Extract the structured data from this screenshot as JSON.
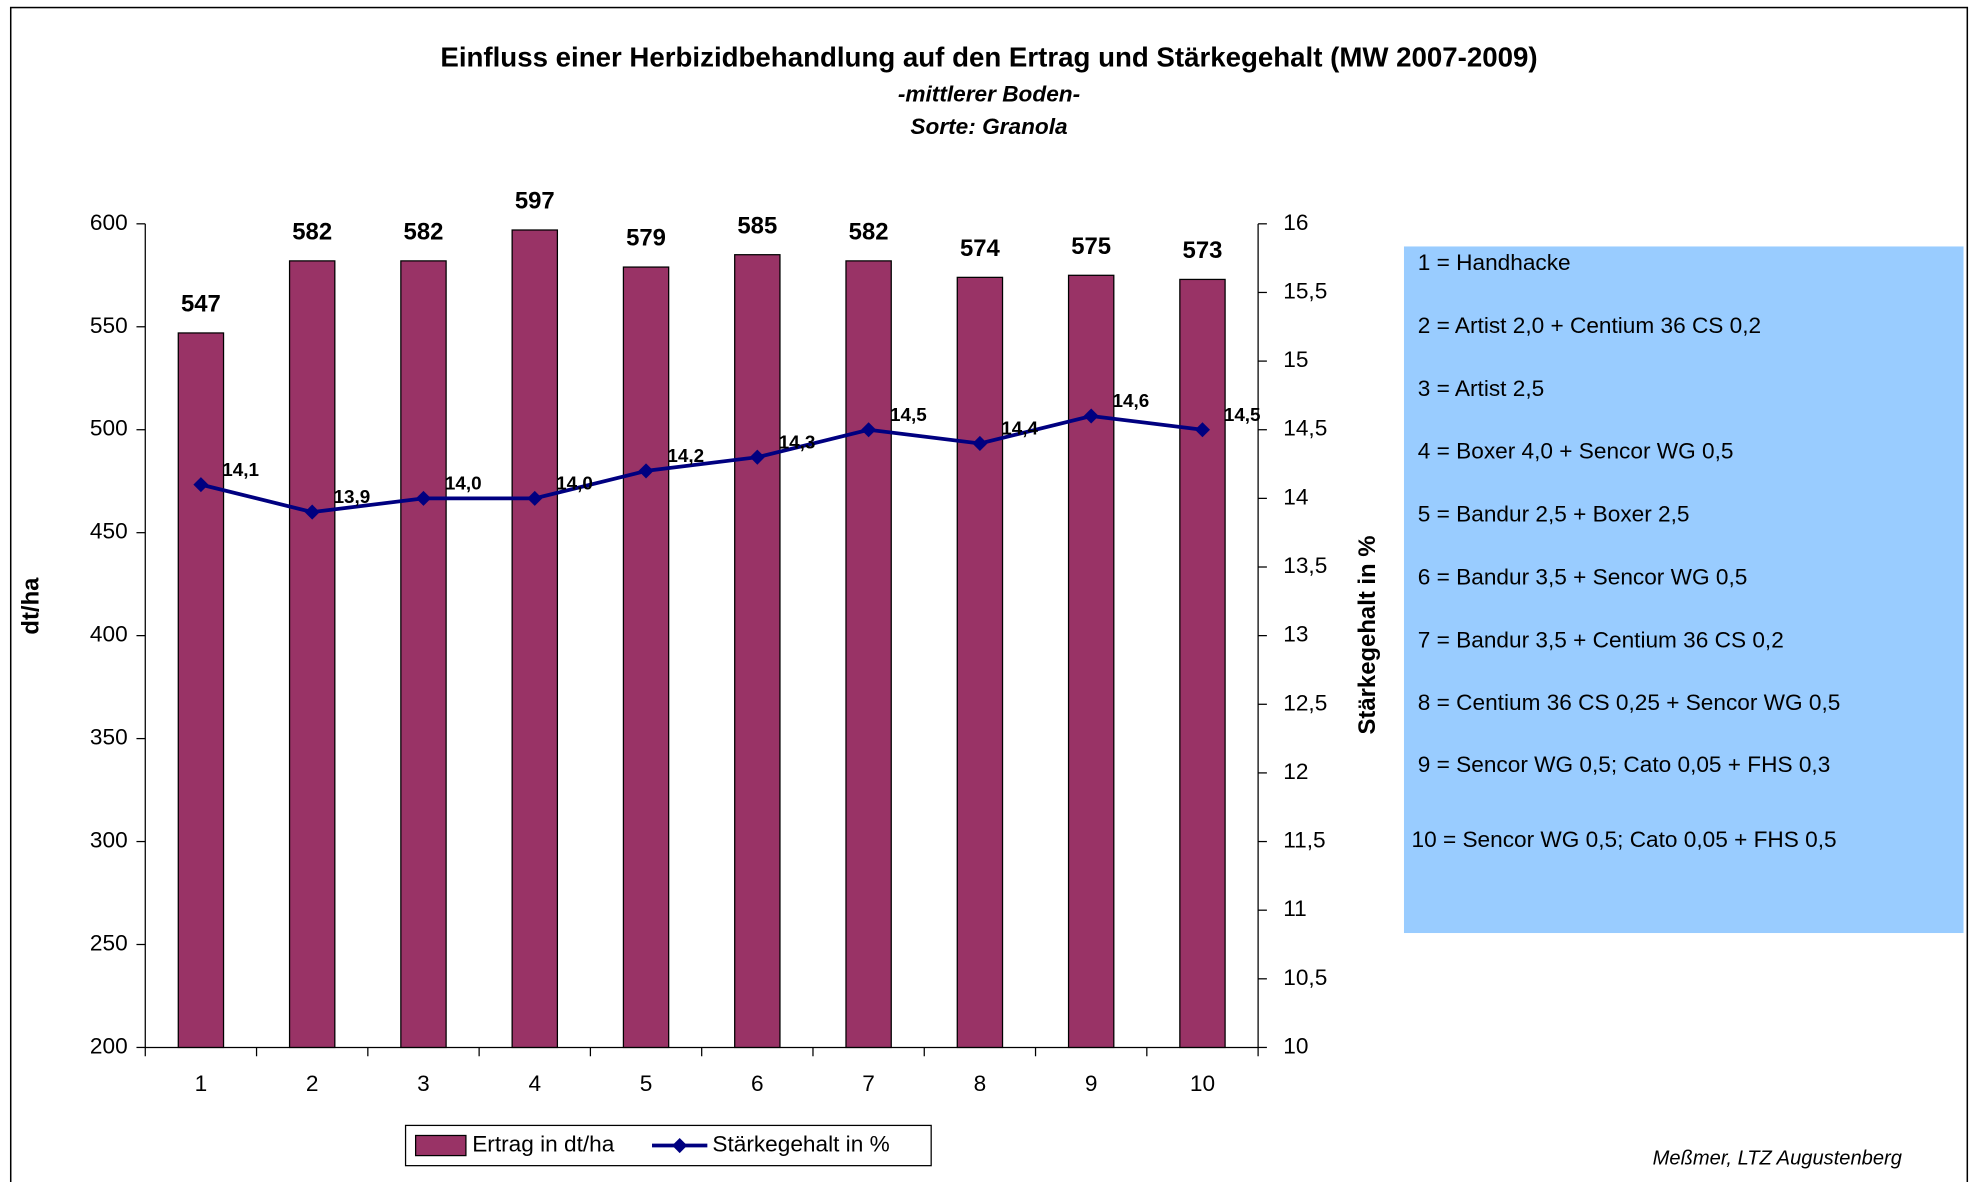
{
  "chart_data": {
    "type": "bar",
    "title": "Einfluss einer Herbizidbehandlung auf den Ertrag und Stärkegehalt (MW 2007-2009)",
    "subtitle": [
      "-mittlerer Boden-",
      "Sorte: Granola"
    ],
    "ylabel": "dt/ha",
    "y2label": "Stärkegehalt in %",
    "categories": [
      "1",
      "2",
      "3",
      "4",
      "5",
      "6",
      "7",
      "8",
      "9",
      "10"
    ],
    "series": [
      {
        "name": "Ertrag in dt/ha",
        "type": "bar",
        "color": "#993366",
        "values": [
          547,
          582,
          582,
          597,
          579,
          585,
          582,
          574,
          575,
          573
        ]
      },
      {
        "name": "Stärkegehalt in %",
        "type": "line",
        "axis": "y2",
        "color": "#000080",
        "values": [
          14.1,
          13.9,
          14.0,
          14.0,
          14.2,
          14.3,
          14.5,
          14.4,
          14.6,
          14.5
        ],
        "value_labels": [
          "14,1",
          "13,9",
          "14,0",
          "14,0",
          "14,2",
          "14,3",
          "14,5",
          "14,4",
          "14,6",
          "14,5"
        ]
      }
    ],
    "ylim": [
      200,
      600
    ],
    "yticks": [
      200,
      250,
      300,
      350,
      400,
      450,
      500,
      550,
      600
    ],
    "y2lim": [
      10,
      16
    ],
    "y2ticks": [
      10,
      {
        "value": 10.5,
        "label": "10,5"
      },
      11,
      {
        "value": 11.5,
        "label": "11,5"
      },
      12,
      {
        "value": 12.5,
        "label": "12,5"
      },
      13,
      {
        "value": 13.5,
        "label": "13,5"
      },
      14,
      {
        "value": 14.5,
        "label": "14,5"
      },
      15,
      {
        "value": 15.5,
        "label": "15,5"
      },
      16
    ],
    "notes": [
      "1 = Handhacke",
      "2 = Artist 2,0 + Centium 36 CS 0,2",
      "3 = Artist 2,5",
      "4 = Boxer 4,0 + Sencor WG 0,5",
      "5 = Bandur 2,5 + Boxer 2,5",
      "6 = Bandur 3,5 + Sencor WG 0,5",
      "7 = Bandur 3,5 + Centium 36 CS 0,2",
      "8 = Centium 36 CS 0,25 + Sencor WG 0,5",
      "9 = Sencor WG 0,5; Cato 0,05 + FHS 0,3",
      "10 = Sencor WG 0,5; Cato 0,05 + FHS 0,5"
    ],
    "credit": "Meßmer, LTZ Augustenberg"
  }
}
